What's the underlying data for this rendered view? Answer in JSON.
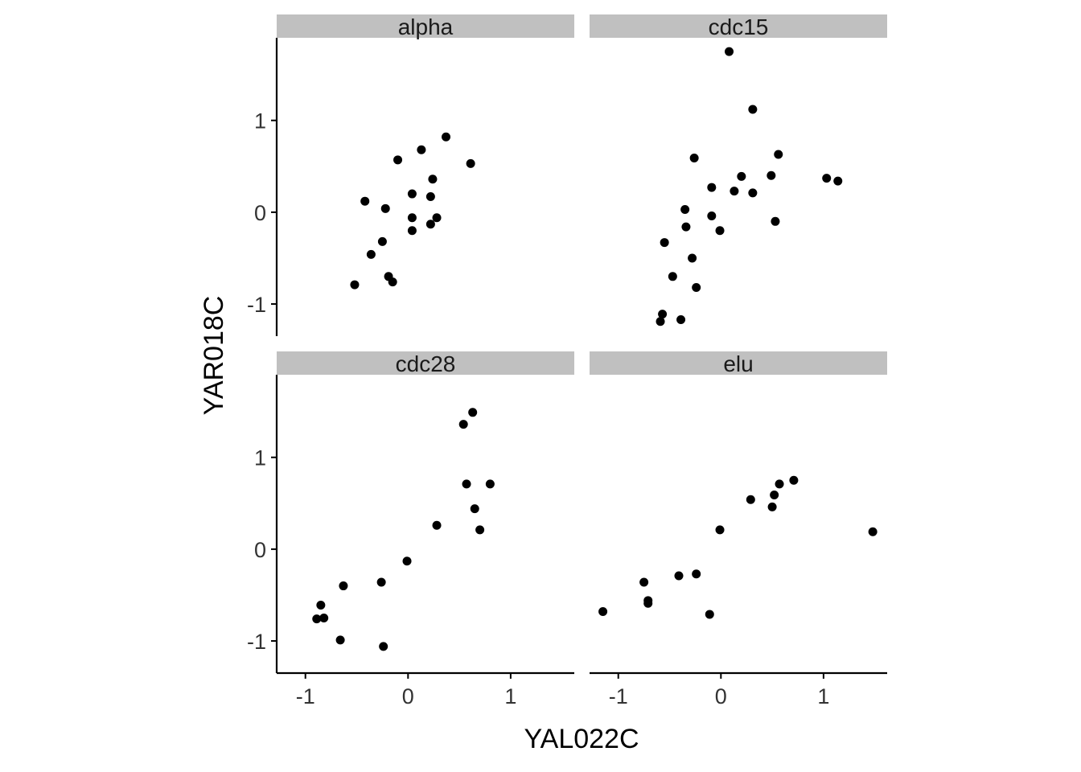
{
  "chart_data": {
    "type": "scatter",
    "xlabel": "YAL022C",
    "ylabel": "YAR018C",
    "xlim": [
      -1.28,
      1.62
    ],
    "ylim": [
      -1.35,
      1.9
    ],
    "xticks": [
      -1,
      0,
      1
    ],
    "yticks": [
      -1,
      0,
      1
    ],
    "grid": false,
    "point_color": "#000000",
    "strip_color": "#c0c0c0",
    "panels": [
      {
        "name": "alpha",
        "points": [
          [
            -0.52,
            -0.79
          ],
          [
            -0.42,
            0.12
          ],
          [
            -0.36,
            -0.46
          ],
          [
            -0.25,
            -0.32
          ],
          [
            -0.22,
            0.04
          ],
          [
            -0.19,
            -0.7
          ],
          [
            -0.15,
            -0.76
          ],
          [
            -0.1,
            0.57
          ],
          [
            0.04,
            0.2
          ],
          [
            0.04,
            -0.06
          ],
          [
            0.04,
            -0.2
          ],
          [
            0.13,
            0.68
          ],
          [
            0.22,
            0.17
          ],
          [
            0.22,
            -0.13
          ],
          [
            0.24,
            0.36
          ],
          [
            0.28,
            -0.06
          ],
          [
            0.37,
            0.82
          ],
          [
            0.61,
            0.53
          ]
        ]
      },
      {
        "name": "cdc15",
        "points": [
          [
            -0.59,
            -1.19
          ],
          [
            -0.57,
            -1.11
          ],
          [
            -0.55,
            -0.33
          ],
          [
            -0.47,
            -0.7
          ],
          [
            -0.39,
            -1.17
          ],
          [
            -0.35,
            0.03
          ],
          [
            -0.34,
            -0.16
          ],
          [
            -0.28,
            -0.5
          ],
          [
            -0.26,
            0.59
          ],
          [
            -0.24,
            -0.82
          ],
          [
            -0.09,
            0.27
          ],
          [
            -0.09,
            -0.04
          ],
          [
            -0.01,
            -0.2
          ],
          [
            0.08,
            1.75
          ],
          [
            0.13,
            0.23
          ],
          [
            0.2,
            0.39
          ],
          [
            0.31,
            1.12
          ],
          [
            0.31,
            0.21
          ],
          [
            0.49,
            0.4
          ],
          [
            0.53,
            -0.1
          ],
          [
            0.56,
            0.63
          ],
          [
            1.03,
            0.37
          ],
          [
            1.14,
            0.34
          ]
        ]
      },
      {
        "name": "cdc28",
        "points": [
          [
            -0.89,
            -0.76
          ],
          [
            -0.85,
            -0.61
          ],
          [
            -0.82,
            -0.75
          ],
          [
            -0.66,
            -0.99
          ],
          [
            -0.63,
            -0.4
          ],
          [
            -0.26,
            -0.36
          ],
          [
            -0.24,
            -1.06
          ],
          [
            -0.01,
            -0.13
          ],
          [
            0.28,
            0.26
          ],
          [
            0.54,
            1.36
          ],
          [
            0.57,
            0.71
          ],
          [
            0.63,
            1.49
          ],
          [
            0.65,
            0.44
          ],
          [
            0.7,
            0.21
          ],
          [
            0.8,
            0.71
          ]
        ]
      },
      {
        "name": "elu",
        "points": [
          [
            -1.15,
            -0.68
          ],
          [
            -0.75,
            -0.36
          ],
          [
            -0.71,
            -0.56
          ],
          [
            -0.71,
            -0.59
          ],
          [
            -0.41,
            -0.29
          ],
          [
            -0.24,
            -0.27
          ],
          [
            -0.11,
            -0.71
          ],
          [
            -0.01,
            0.21
          ],
          [
            0.29,
            0.54
          ],
          [
            0.5,
            0.46
          ],
          [
            0.52,
            0.59
          ],
          [
            0.57,
            0.71
          ],
          [
            0.71,
            0.75
          ],
          [
            1.48,
            0.19
          ]
        ]
      }
    ]
  }
}
